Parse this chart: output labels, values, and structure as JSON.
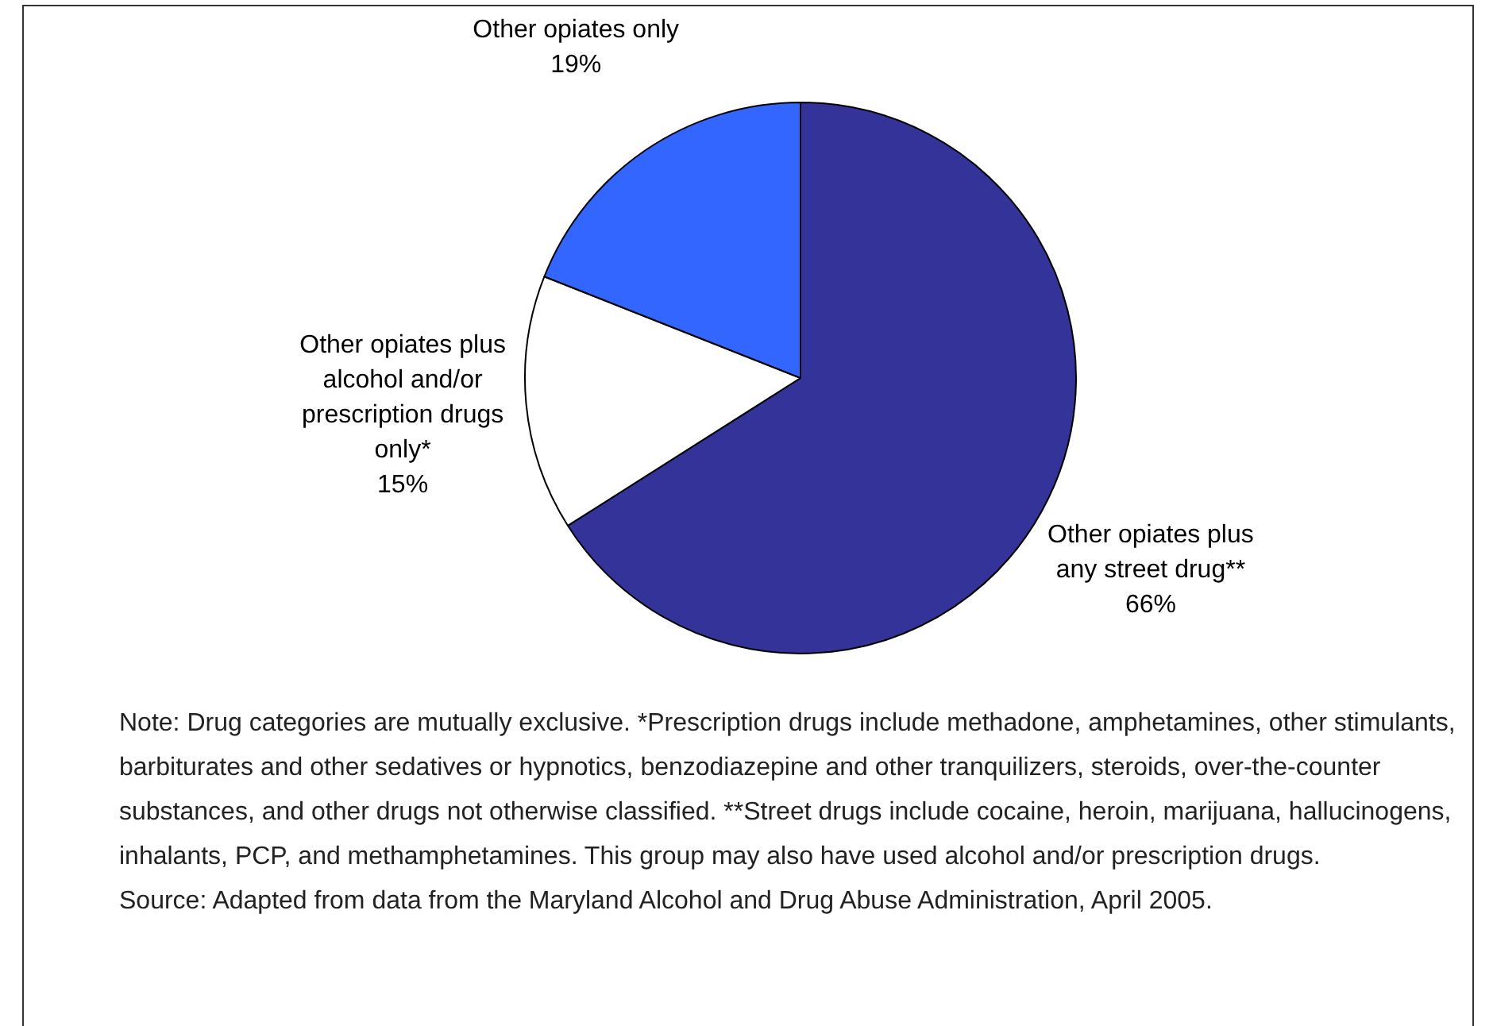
{
  "chart_data": {
    "type": "pie",
    "categories": [
      "Other opiates plus any street drug**",
      "Other opiates plus alcohol and/or prescription drugs only*",
      "Other opiates only"
    ],
    "values": [
      66,
      15,
      19
    ],
    "colors": [
      "#333399",
      "#ffffff",
      "#3366ff"
    ],
    "value_labels": [
      "66%",
      "15%",
      "19%"
    ],
    "legend": false,
    "annotations": [
      "Note: Drug categories are mutually exclusive. *Prescription drugs include methadone, amphetamines, other stimulants, barbiturates and other sedatives or hypnotics, benzodiazepine and other tranquilizers, steroids, over-the-counter substances, and other drugs not otherwise classified. **Street drugs include cocaine, heroin, marijuana, hallucinogens, inhalants, PCP, and methamphetamines. This group may also have used alcohol and/or prescription drugs.",
      "Source: Adapted from data from the Maryland Alcohol and Drug Abuse Administration, April 2005."
    ]
  }
}
